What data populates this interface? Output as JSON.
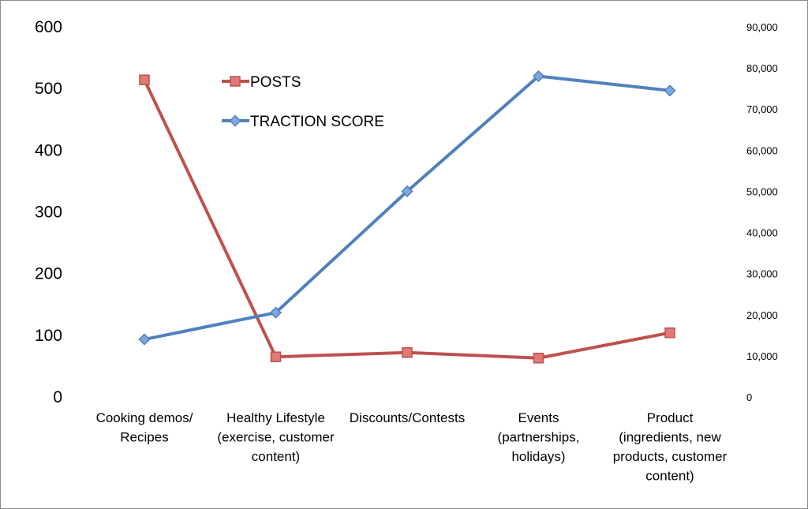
{
  "chart_data": {
    "type": "line",
    "categories": [
      [
        "Cooking demos/",
        "Recipes"
      ],
      [
        "Healthy Lifestyle",
        "(exercise, customer",
        "content)"
      ],
      [
        "Discounts/Contests"
      ],
      [
        "Events",
        "(partnerships,",
        "holidays)"
      ],
      [
        "Product",
        "(ingredients, new",
        "products, customer",
        "content)"
      ]
    ],
    "y_left": {
      "min": 0,
      "max": 600,
      "step": 100,
      "ticks": [
        "0",
        "100",
        "200",
        "300",
        "400",
        "500",
        "600"
      ]
    },
    "y_right": {
      "min": 0,
      "max": 90000,
      "step": 10000,
      "ticks": [
        "0",
        "10,000",
        "20,000",
        "30,000",
        "40,000",
        "50,000",
        "60,000",
        "70,000",
        "80,000",
        "90,000"
      ]
    },
    "series": [
      {
        "name": "POSTS",
        "axis": "left",
        "color": "#c0504d",
        "marker": "square",
        "values": [
          514,
          65,
          72,
          63,
          104
        ]
      },
      {
        "name": "TRACTION SCORE",
        "axis": "right",
        "color": "#4f81bd",
        "marker": "diamond",
        "values": [
          14000,
          20500,
          50000,
          78000,
          74500
        ]
      }
    ],
    "legend_position": "top-left-inside",
    "grid": false
  }
}
